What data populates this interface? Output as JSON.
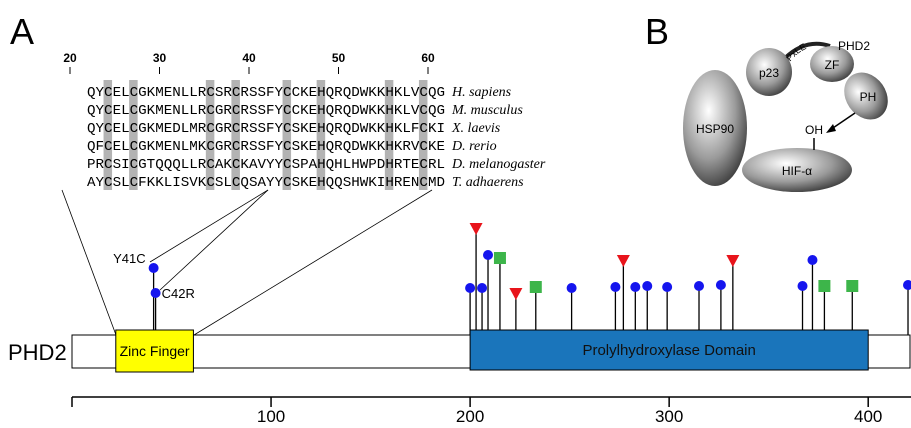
{
  "panel_a": {
    "label": "A",
    "alignment": {
      "ruler": [
        20,
        30,
        40,
        50,
        60
      ],
      "rows": [
        {
          "sequence": "QYCELCGKMENLLRCSRCRSSFYCCKEHQRQDWKKHKLVCQG",
          "species": "H. sapiens"
        },
        {
          "sequence": "QYCELCGKMENLLRCGRCRSSFYCCKEHQRQDWKKHKLVCQG",
          "species": "M. musculus"
        },
        {
          "sequence": "QYCELCGKMEDLMRCGRCRSSFYCSKEHQRQDWKKHKLFCKI",
          "species": "X. laevis"
        },
        {
          "sequence": "QFCELCGKMENLMKCGRCRSSFYCSKEHQRQDWKKHKRVCKE",
          "species": "D. rerio"
        },
        {
          "sequence": "PRCSICGTQQQLLRCAKCKAVYYCSPAHQHLHWPDHRTECRL",
          "species": "D. melanogaster"
        },
        {
          "sequence": "AYCSLCFKKLISVKCSLCQSAYYCSKEHQQSHWKIHRENCMD",
          "species": "T. adhaerens"
        }
      ]
    },
    "protein": "PHD2",
    "xlim": [
      0,
      421
    ],
    "axis_ticks": [
      100,
      200,
      300,
      400
    ],
    "domains": [
      {
        "name": "Zinc Finger",
        "start": 22,
        "end": 61
      },
      {
        "name": "Prolylhydroxylase Domain",
        "start": 200,
        "end": 400
      }
    ],
    "variants": [
      {
        "residue": 41,
        "shape": "circle",
        "label": "Y41C"
      },
      {
        "residue": 42,
        "shape": "circle",
        "label": "C42R"
      },
      {
        "residue": 200,
        "shape": "circle"
      },
      {
        "residue": 203,
        "shape": "triangle"
      },
      {
        "residue": 206,
        "shape": "circle"
      },
      {
        "residue": 209,
        "shape": "circle"
      },
      {
        "residue": 215,
        "shape": "square"
      },
      {
        "residue": 223,
        "shape": "triangle"
      },
      {
        "residue": 233,
        "shape": "square"
      },
      {
        "residue": 251,
        "shape": "circle"
      },
      {
        "residue": 273,
        "shape": "circle"
      },
      {
        "residue": 277,
        "shape": "triangle"
      },
      {
        "residue": 283,
        "shape": "circle"
      },
      {
        "residue": 289,
        "shape": "circle"
      },
      {
        "residue": 299,
        "shape": "circle"
      },
      {
        "residue": 315,
        "shape": "circle"
      },
      {
        "residue": 326,
        "shape": "circle"
      },
      {
        "residue": 332,
        "shape": "triangle"
      },
      {
        "residue": 367,
        "shape": "circle"
      },
      {
        "residue": 372,
        "shape": "circle"
      },
      {
        "residue": 378,
        "shape": "square"
      },
      {
        "residue": 392,
        "shape": "square"
      },
      {
        "residue": 420,
        "shape": "circle"
      }
    ]
  },
  "panel_b": {
    "label": "B",
    "hsp90": "HSP90",
    "p23": "p23",
    "zf": "ZF",
    "ph": "PH",
    "hif": "HIF-α",
    "phd2": "PHD2",
    "motif": "PxLE",
    "oh": "OH"
  }
}
